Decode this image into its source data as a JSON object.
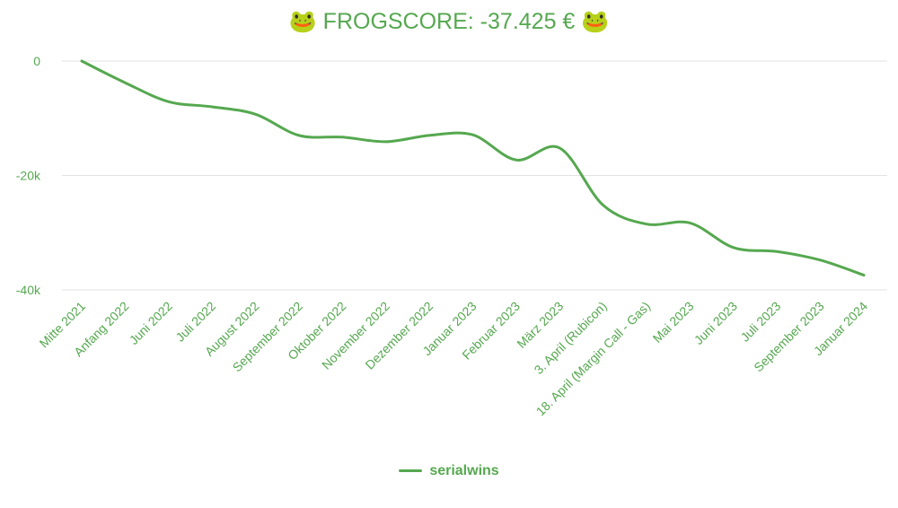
{
  "chart_data": {
    "type": "line",
    "title": "🐸 FROGSCORE: -37.425 € 🐸",
    "categories": [
      "Mitte 2021",
      "Anfang 2022",
      "Juni 2022",
      "Juli 2022",
      "August 2022",
      "September 2022",
      "Oktober 2022",
      "November 2022",
      "Dezember 2022",
      "Januar 2023",
      "Februar 2023",
      "März 2023",
      "3. April (Rubicon)",
      "18. April (Margin Call - Gas)",
      "Mai 2023",
      "Juni 2023",
      "Juli 2023",
      "September 2023",
      "Januar 2024"
    ],
    "series": [
      {
        "name": "serialwins",
        "color": "#55a84f",
        "values": [
          0,
          -3800,
          -7100,
          -8000,
          -9300,
          -13000,
          -13300,
          -14100,
          -13000,
          -12900,
          -17300,
          -15200,
          -25200,
          -28500,
          -28300,
          -32600,
          -33300,
          -34800,
          -37425
        ]
      }
    ],
    "yticks": [
      0,
      -20000,
      -40000
    ],
    "ytick_labels": [
      "0",
      "-20k",
      "-40k"
    ],
    "ylim": [
      -40000,
      0
    ],
    "grid": true,
    "legend_position": "bottom"
  }
}
